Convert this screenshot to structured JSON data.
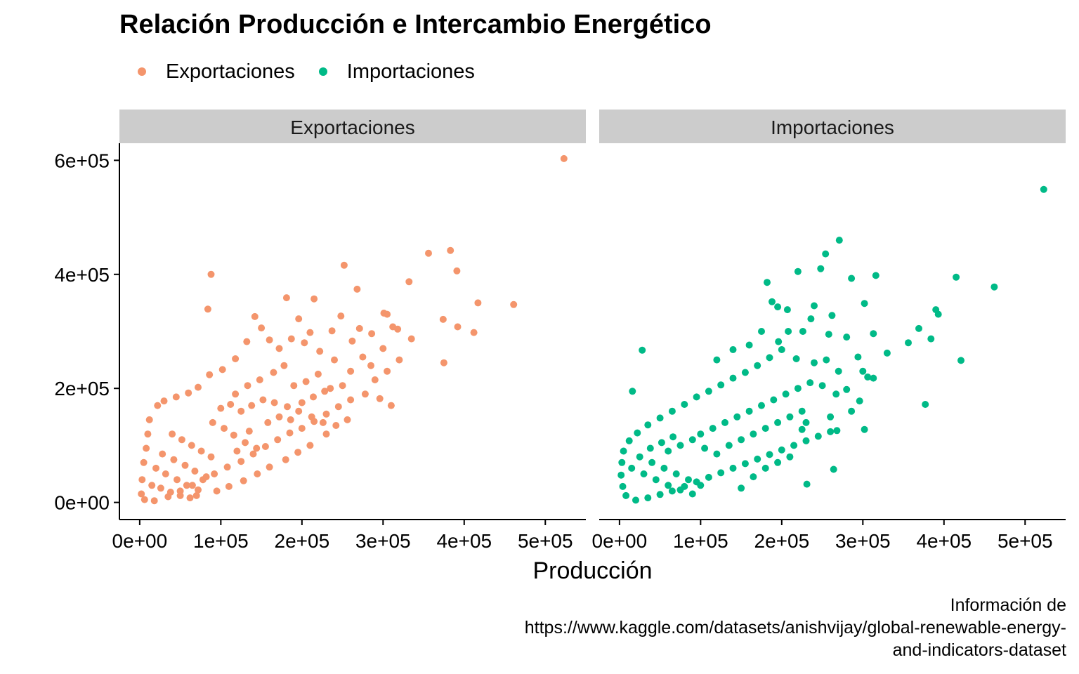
{
  "chart_data": {
    "type": "scatter",
    "title": "Relación Producción e Intercambio Energético",
    "xlabel": "Producción",
    "ylabel": "",
    "caption_lines": [
      "Información de",
      "https://www.kaggle.com/datasets/anishvijay/global-renewable-energy-",
      "and-indicators-dataset"
    ],
    "legend_position": "top-left",
    "facets": [
      "Exportaciones",
      "Importaciones"
    ],
    "xlim": [
      -25000,
      550000
    ],
    "ylim": [
      -30000,
      630000
    ],
    "x_ticks": [
      0,
      100000,
      200000,
      300000,
      400000,
      500000
    ],
    "x_tick_labels": [
      "0e+00",
      "1e+05",
      "2e+05",
      "3e+05",
      "4e+05",
      "5e+05"
    ],
    "y_ticks": [
      0,
      200000,
      400000,
      600000
    ],
    "y_tick_labels": [
      "0e+00",
      "2e+05",
      "4e+05",
      "6e+05"
    ],
    "grid": false,
    "series": [
      {
        "name": "Exportaciones",
        "color": "#F4956C",
        "points": [
          [
            523000,
            603000
          ],
          [
            383000,
            442000
          ],
          [
            356000,
            437000
          ],
          [
            391000,
            406000
          ],
          [
            252000,
            416000
          ],
          [
            88000,
            400000
          ],
          [
            332000,
            387000
          ],
          [
            268000,
            374000
          ],
          [
            84000,
            339000
          ],
          [
            417000,
            350000
          ],
          [
            461000,
            347000
          ],
          [
            374000,
            321000
          ],
          [
            392000,
            308000
          ],
          [
            412000,
            298000
          ],
          [
            375000,
            245000
          ],
          [
            181000,
            359000
          ],
          [
            215000,
            357000
          ],
          [
            301000,
            332000
          ],
          [
            305000,
            330000
          ],
          [
            335000,
            287000
          ],
          [
            312000,
            308000
          ],
          [
            318000,
            304000
          ],
          [
            248000,
            327000
          ],
          [
            196000,
            322000
          ],
          [
            142000,
            326000
          ],
          [
            150000,
            306000
          ],
          [
            210000,
            298000
          ],
          [
            271000,
            305000
          ],
          [
            286000,
            296000
          ],
          [
            237000,
            301000
          ],
          [
            262000,
            283000
          ],
          [
            300000,
            270000
          ],
          [
            320000,
            250000
          ],
          [
            285000,
            240000
          ],
          [
            305000,
            230000
          ],
          [
            275000,
            255000
          ],
          [
            290000,
            215000
          ],
          [
            260000,
            230000
          ],
          [
            240000,
            250000
          ],
          [
            222000,
            265000
          ],
          [
            203000,
            280000
          ],
          [
            187000,
            287000
          ],
          [
            172000,
            270000
          ],
          [
            160000,
            285000
          ],
          [
            132000,
            282000
          ],
          [
            118000,
            252000
          ],
          [
            102000,
            233000
          ],
          [
            86000,
            224000
          ],
          [
            72000,
            202000
          ],
          [
            60000,
            192000
          ],
          [
            45000,
            185000
          ],
          [
            30000,
            178000
          ],
          [
            22000,
            170000
          ],
          [
            12000,
            145000
          ],
          [
            10000,
            120000
          ],
          [
            8000,
            95000
          ],
          [
            5000,
            70000
          ],
          [
            3000,
            40000
          ],
          [
            2000,
            15000
          ],
          [
            6000,
            5000
          ],
          [
            18000,
            3000
          ],
          [
            35000,
            10000
          ],
          [
            50000,
            20000
          ],
          [
            65000,
            30000
          ],
          [
            78000,
            40000
          ],
          [
            92000,
            50000
          ],
          [
            108000,
            62000
          ],
          [
            125000,
            72000
          ],
          [
            140000,
            85000
          ],
          [
            155000,
            98000
          ],
          [
            170000,
            110000
          ],
          [
            185000,
            122000
          ],
          [
            200000,
            130000
          ],
          [
            215000,
            142000
          ],
          [
            230000,
            155000
          ],
          [
            245000,
            168000
          ],
          [
            260000,
            180000
          ],
          [
            278000,
            190000
          ],
          [
            296000,
            182000
          ],
          [
            310000,
            170000
          ],
          [
            230000,
            120000
          ],
          [
            210000,
            100000
          ],
          [
            195000,
            88000
          ],
          [
            180000,
            75000
          ],
          [
            160000,
            62000
          ],
          [
            145000,
            50000
          ],
          [
            128000,
            38000
          ],
          [
            110000,
            28000
          ],
          [
            95000,
            20000
          ],
          [
            70000,
            12000
          ],
          [
            118000,
            190000
          ],
          [
            133000,
            205000
          ],
          [
            148000,
            215000
          ],
          [
            165000,
            228000
          ],
          [
            178000,
            240000
          ],
          [
            190000,
            205000
          ],
          [
            205000,
            212000
          ],
          [
            220000,
            225000
          ],
          [
            235000,
            200000
          ],
          [
            250000,
            205000
          ],
          [
            100000,
            165000
          ],
          [
            112000,
            172000
          ],
          [
            125000,
            160000
          ],
          [
            138000,
            170000
          ],
          [
            152000,
            180000
          ],
          [
            166000,
            175000
          ],
          [
            182000,
            168000
          ],
          [
            196000,
            160000
          ],
          [
            212000,
            150000
          ],
          [
            226000,
            140000
          ],
          [
            40000,
            120000
          ],
          [
            52000,
            110000
          ],
          [
            64000,
            100000
          ],
          [
            76000,
            90000
          ],
          [
            88000,
            80000
          ],
          [
            28000,
            85000
          ],
          [
            42000,
            75000
          ],
          [
            56000,
            65000
          ],
          [
            68000,
            55000
          ],
          [
            82000,
            45000
          ],
          [
            20000,
            60000
          ],
          [
            32000,
            50000
          ],
          [
            46000,
            40000
          ],
          [
            58000,
            30000
          ],
          [
            72000,
            22000
          ],
          [
            15000,
            30000
          ],
          [
            26000,
            25000
          ],
          [
            38000,
            18000
          ],
          [
            50000,
            12000
          ],
          [
            62000,
            8000
          ],
          [
            90000,
            140000
          ],
          [
            104000,
            130000
          ],
          [
            116000,
            118000
          ],
          [
            130000,
            105000
          ],
          [
            144000,
            95000
          ],
          [
            158000,
            140000
          ],
          [
            172000,
            150000
          ],
          [
            186000,
            145000
          ],
          [
            200000,
            175000
          ],
          [
            214000,
            185000
          ],
          [
            228000,
            195000
          ],
          [
            242000,
            135000
          ],
          [
            256000,
            145000
          ],
          [
            120000,
            90000
          ],
          [
            135000,
            125000
          ]
        ]
      },
      {
        "name": "Importaciones",
        "color": "#00BA87",
        "points": [
          [
            523000,
            549000
          ],
          [
            271000,
            460000
          ],
          [
            254000,
            436000
          ],
          [
            220000,
            405000
          ],
          [
            248000,
            410000
          ],
          [
            182000,
            386000
          ],
          [
            286000,
            393000
          ],
          [
            316000,
            398000
          ],
          [
            415000,
            395000
          ],
          [
            462000,
            378000
          ],
          [
            390000,
            338000
          ],
          [
            393000,
            330000
          ],
          [
            302000,
            349000
          ],
          [
            369000,
            305000
          ],
          [
            356000,
            280000
          ],
          [
            384000,
            287000
          ],
          [
            330000,
            262000
          ],
          [
            421000,
            249000
          ],
          [
            377000,
            172000
          ],
          [
            264000,
            58000
          ],
          [
            231000,
            32000
          ],
          [
            28000,
            267000
          ],
          [
            16000,
            195000
          ],
          [
            195000,
            343000
          ],
          [
            175000,
            300000
          ],
          [
            207000,
            338000
          ],
          [
            188000,
            352000
          ],
          [
            240000,
            345000
          ],
          [
            262000,
            328000
          ],
          [
            258000,
            295000
          ],
          [
            208000,
            300000
          ],
          [
            226000,
            300000
          ],
          [
            236000,
            322000
          ],
          [
            196000,
            282000
          ],
          [
            294000,
            255000
          ],
          [
            280000,
            290000
          ],
          [
            313000,
            296000
          ],
          [
            300000,
            230000
          ],
          [
            306000,
            220000
          ],
          [
            296000,
            178000
          ],
          [
            286000,
            160000
          ],
          [
            260000,
            150000
          ],
          [
            268000,
            126000
          ],
          [
            230000,
            140000
          ],
          [
            225000,
            128000
          ],
          [
            302000,
            128000
          ],
          [
            313000,
            218000
          ],
          [
            280000,
            198000
          ],
          [
            267000,
            190000
          ],
          [
            250000,
            205000
          ],
          [
            240000,
            245000
          ],
          [
            255000,
            250000
          ],
          [
            270000,
            230000
          ],
          [
            218000,
            252000
          ],
          [
            200000,
            268000
          ],
          [
            185000,
            254000
          ],
          [
            170000,
            240000
          ],
          [
            155000,
            228000
          ],
          [
            140000,
            218000
          ],
          [
            125000,
            206000
          ],
          [
            110000,
            195000
          ],
          [
            95000,
            185000
          ],
          [
            80000,
            172000
          ],
          [
            65000,
            160000
          ],
          [
            50000,
            148000
          ],
          [
            35000,
            136000
          ],
          [
            22000,
            122000
          ],
          [
            12000,
            108000
          ],
          [
            5000,
            90000
          ],
          [
            3000,
            70000
          ],
          [
            2000,
            48000
          ],
          [
            4000,
            28000
          ],
          [
            8000,
            12000
          ],
          [
            20000,
            4000
          ],
          [
            35000,
            8000
          ],
          [
            50000,
            14000
          ],
          [
            65000,
            20000
          ],
          [
            80000,
            28000
          ],
          [
            95000,
            36000
          ],
          [
            110000,
            44000
          ],
          [
            125000,
            52000
          ],
          [
            140000,
            60000
          ],
          [
            155000,
            68000
          ],
          [
            170000,
            76000
          ],
          [
            185000,
            84000
          ],
          [
            200000,
            92000
          ],
          [
            215000,
            100000
          ],
          [
            230000,
            108000
          ],
          [
            245000,
            116000
          ],
          [
            260000,
            124000
          ],
          [
            100000,
            120000
          ],
          [
            115000,
            130000
          ],
          [
            130000,
            140000
          ],
          [
            145000,
            150000
          ],
          [
            160000,
            160000
          ],
          [
            175000,
            170000
          ],
          [
            190000,
            180000
          ],
          [
            205000,
            190000
          ],
          [
            220000,
            200000
          ],
          [
            235000,
            210000
          ],
          [
            60000,
            90000
          ],
          [
            75000,
            100000
          ],
          [
            90000,
            110000
          ],
          [
            105000,
            95000
          ],
          [
            120000,
            85000
          ],
          [
            40000,
            70000
          ],
          [
            55000,
            60000
          ],
          [
            70000,
            50000
          ],
          [
            85000,
            40000
          ],
          [
            100000,
            30000
          ],
          [
            30000,
            50000
          ],
          [
            45000,
            40000
          ],
          [
            60000,
            30000
          ],
          [
            75000,
            22000
          ],
          [
            90000,
            15000
          ],
          [
            15000,
            60000
          ],
          [
            25000,
            80000
          ],
          [
            38000,
            95000
          ],
          [
            52000,
            105000
          ],
          [
            66000,
            115000
          ],
          [
            135000,
            100000
          ],
          [
            150000,
            110000
          ],
          [
            165000,
            120000
          ],
          [
            180000,
            130000
          ],
          [
            195000,
            140000
          ],
          [
            210000,
            150000
          ],
          [
            225000,
            160000
          ],
          [
            150000,
            25000
          ],
          [
            165000,
            45000
          ],
          [
            180000,
            60000
          ],
          [
            195000,
            70000
          ],
          [
            210000,
            80000
          ],
          [
            120000,
            250000
          ],
          [
            140000,
            268000
          ],
          [
            160000,
            276000
          ]
        ]
      }
    ]
  }
}
